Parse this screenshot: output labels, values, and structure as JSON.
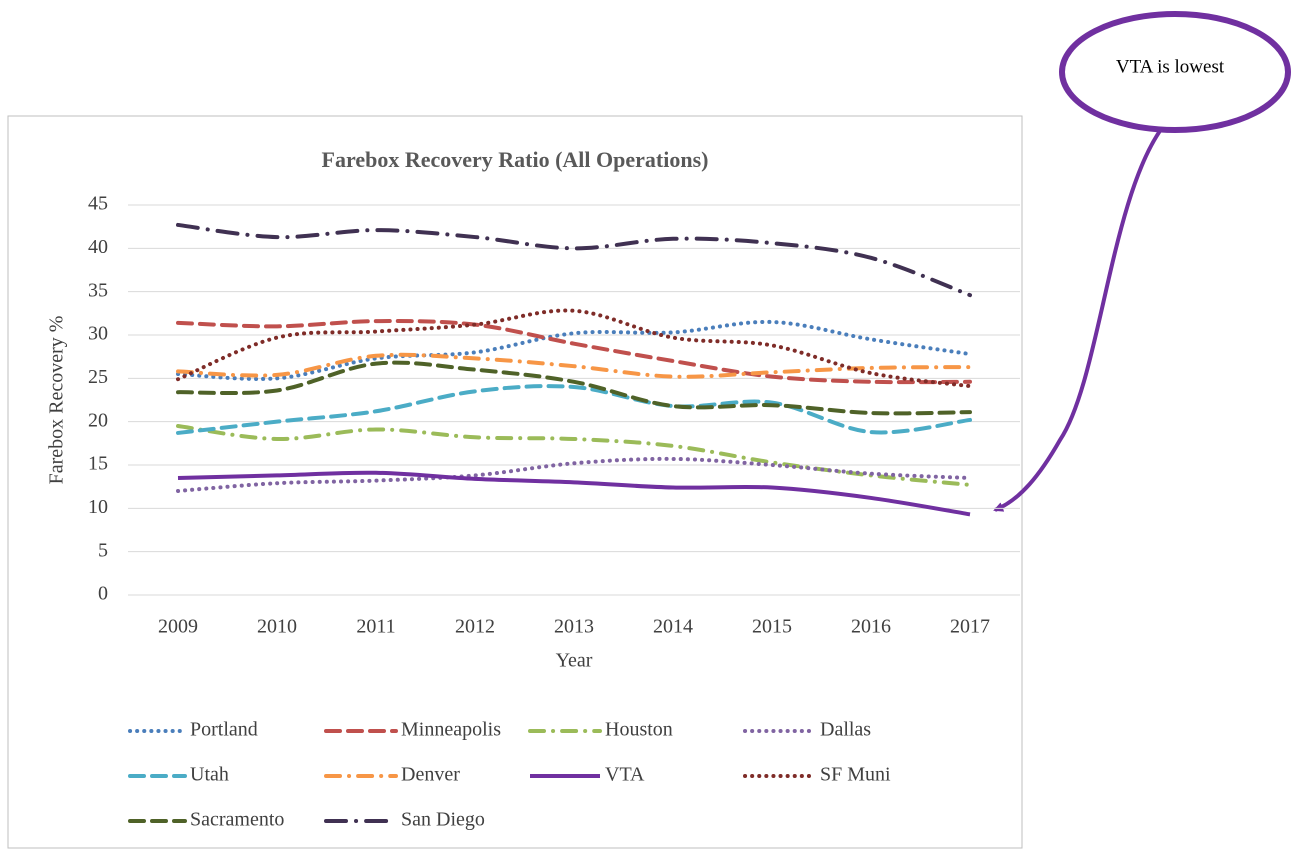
{
  "chart_data": {
    "type": "line",
    "title": "Farebox Recovery Ratio (All Operations)",
    "x_label": "Year",
    "y_label": "Farebox Recovery %",
    "annotation": "VTA is lowest",
    "categories": [
      "2009",
      "2010",
      "2011",
      "2012",
      "2013",
      "2014",
      "2015",
      "2016",
      "2017"
    ],
    "ylim": [
      0,
      45
    ],
    "yticks": [
      0,
      5,
      10,
      15,
      20,
      25,
      30,
      35,
      40,
      45
    ],
    "grid": true,
    "legend": "bottom",
    "series": [
      {
        "name": "Portland",
        "color": "#4a7ebb",
        "style": "dotted",
        "values": [
          25.5,
          25,
          27.3,
          28,
          30.2,
          30.3,
          31.5,
          29.5,
          27.8
        ]
      },
      {
        "name": "Minneapolis",
        "color": "#c0504d",
        "style": "dashed",
        "values": [
          31.4,
          31,
          31.6,
          31.2,
          29,
          27,
          25.2,
          24.6,
          24.6
        ]
      },
      {
        "name": "Houston",
        "color": "#9bbb59",
        "style": "dash-dot",
        "values": [
          19.5,
          18,
          19.1,
          18.2,
          18,
          17.2,
          15.3,
          13.8,
          12.7
        ]
      },
      {
        "name": "Dallas",
        "color": "#8064a2",
        "style": "dotted",
        "values": [
          12,
          12.9,
          13.2,
          13.8,
          15.2,
          15.7,
          15,
          14,
          13.5
        ]
      },
      {
        "name": "Utah",
        "color": "#4bacc6",
        "style": "dashed",
        "values": [
          18.7,
          20,
          21.2,
          23.5,
          24,
          21.8,
          22.2,
          18.8,
          20.2
        ]
      },
      {
        "name": "Denver",
        "color": "#f79646",
        "style": "dash-dot",
        "values": [
          25.8,
          25.4,
          27.6,
          27.3,
          26.4,
          25.2,
          25.7,
          26.2,
          26.3
        ]
      },
      {
        "name": "VTA",
        "color": "#7030a0",
        "style": "solid",
        "values": [
          13.5,
          13.8,
          14.1,
          13.4,
          13,
          12.4,
          12.4,
          11.2,
          9.3
        ]
      },
      {
        "name": "SF Muni",
        "color": "#7f2c28",
        "style": "dotted",
        "values": [
          24.9,
          29.7,
          30.4,
          31.2,
          32.8,
          29.7,
          28.8,
          25.6,
          24.1
        ]
      },
      {
        "name": "Sacramento",
        "color": "#4f6228",
        "style": "dashed",
        "values": [
          23.4,
          23.6,
          26.7,
          26,
          24.6,
          21.8,
          21.9,
          21,
          21.1
        ]
      },
      {
        "name": "San Diego",
        "color": "#403152",
        "style": "long-dash-dot",
        "values": [
          42.7,
          41.3,
          42.1,
          41.3,
          40,
          41.1,
          40.6,
          38.9,
          34.6
        ]
      }
    ]
  }
}
